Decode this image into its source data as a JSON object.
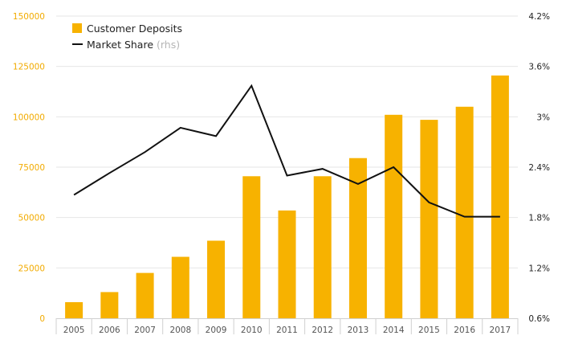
{
  "chart_data": {
    "type": "bar",
    "categories": [
      "2005",
      "2006",
      "2007",
      "2008",
      "2009",
      "2010",
      "2011",
      "2012",
      "2013",
      "2014",
      "2015",
      "2016",
      "2017"
    ],
    "series": [
      {
        "name": "Customer Deposits",
        "type": "bar",
        "axis": "left",
        "color": "#f7b200",
        "values": [
          8000,
          13000,
          22500,
          30500,
          38500,
          70500,
          53500,
          70500,
          79500,
          101000,
          98500,
          105000,
          120500
        ]
      },
      {
        "name": "Market Share",
        "name_suffix": "(rhs)",
        "type": "line",
        "axis": "right",
        "color": "#111111",
        "values": [
          2.07,
          2.33,
          2.58,
          2.87,
          2.77,
          3.37,
          2.3,
          2.38,
          2.2,
          2.4,
          1.98,
          1.81,
          1.81
        ]
      }
    ],
    "y_left": {
      "ylim": [
        0,
        150000
      ],
      "ticks": [
        "0",
        "25000",
        "50000",
        "75000",
        "100000",
        "125000",
        "150000"
      ]
    },
    "y_right": {
      "ylim": [
        0.6,
        4.2
      ],
      "ticks": [
        "0.6%",
        "1.2%",
        "1.8%",
        "2.4%",
        "3%",
        "3.6%",
        "4.2%"
      ]
    },
    "grid": true,
    "legend": "top-left",
    "title": "",
    "xlabel": "",
    "ylabel": ""
  }
}
